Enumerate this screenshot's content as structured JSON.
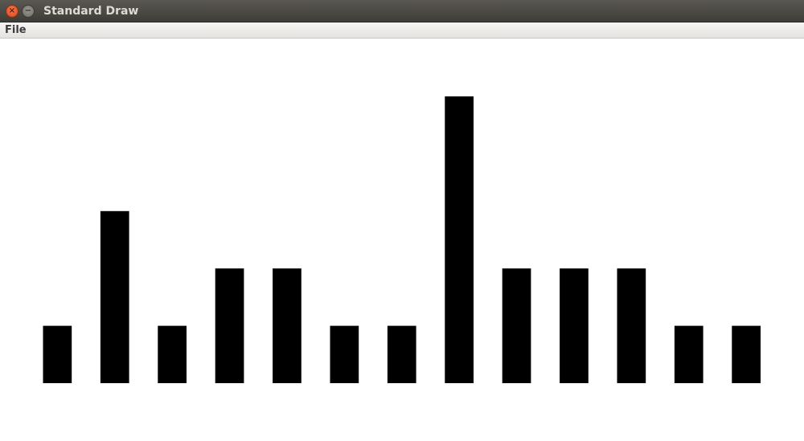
{
  "window": {
    "title": "Standard Draw",
    "close_icon": "close-icon",
    "minimize_icon": "minimize-icon"
  },
  "menubar": {
    "items": [
      {
        "label": "File"
      }
    ]
  },
  "chart_data": {
    "type": "bar",
    "values": [
      1,
      3,
      1,
      2,
      2,
      1,
      1,
      5,
      2,
      2,
      2,
      1,
      1
    ],
    "ylim": [
      0,
      7
    ],
    "bar_color": "#000000",
    "background": "#ffffff",
    "grid": false,
    "title": "",
    "xlabel": "",
    "ylabel": ""
  }
}
